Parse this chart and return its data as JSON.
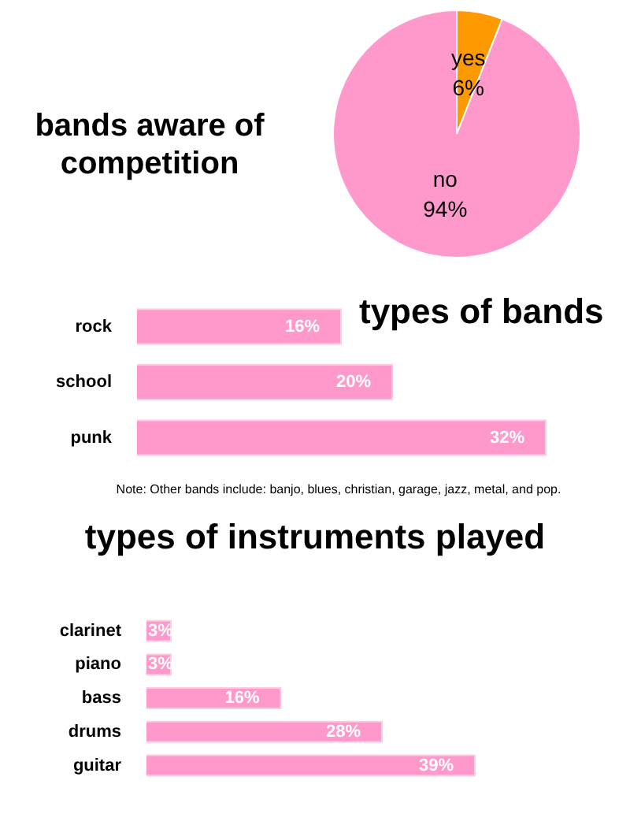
{
  "chart_data": [
    {
      "type": "pie",
      "title": "bands aware of competition",
      "categories": [
        "yes",
        "no"
      ],
      "values": [
        6,
        94
      ],
      "colors": [
        "#ff9900",
        "#ff99cc"
      ],
      "value_labels": [
        "6%",
        "94%"
      ]
    },
    {
      "type": "bar",
      "orientation": "horizontal",
      "title": "types of bands",
      "categories": [
        "rock",
        "school",
        "punk"
      ],
      "values": [
        16,
        20,
        32
      ],
      "color": "#ff99cc",
      "value_labels": [
        "16%",
        "20%",
        "32%"
      ],
      "annotations": [
        "Note: Other bands include: banjo, blues, christian, garage, jazz, metal, and pop."
      ]
    },
    {
      "type": "bar",
      "orientation": "horizontal",
      "title": "types of instruments played",
      "categories": [
        "clarinet",
        "piano",
        "bass",
        "drums",
        "guitar"
      ],
      "values": [
        3,
        3,
        16,
        28,
        39
      ],
      "color": "#ff99cc",
      "value_labels": [
        "3%",
        "3%",
        "16%",
        "28%",
        "39%"
      ]
    }
  ]
}
